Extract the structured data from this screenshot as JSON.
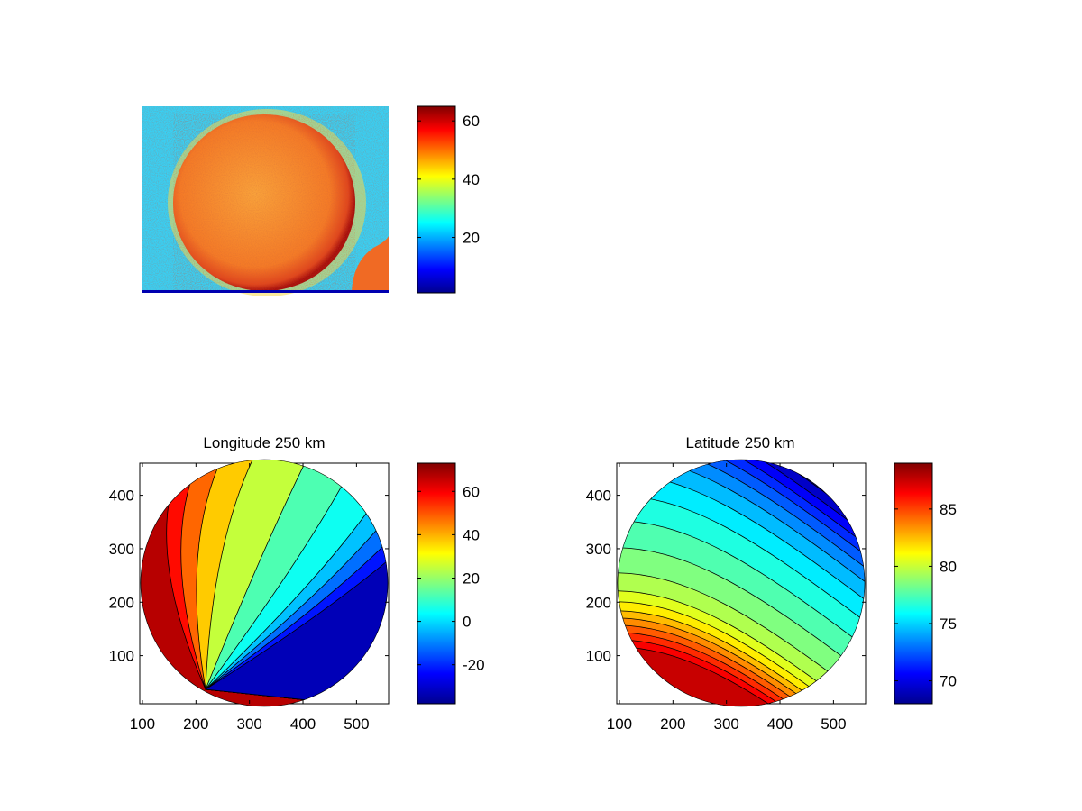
{
  "chart_data": [
    {
      "type": "heatmap",
      "title": "",
      "description_label": "",
      "colormap": "jet",
      "colorbar": {
        "min": 1,
        "max": 65,
        "ticks": [
          20,
          40,
          60
        ]
      },
      "axes_visible": false,
      "colors": {
        "background": "#38d0f4",
        "disk": "#f47a26",
        "limb": "#b8160f",
        "base_line": "#0000b0"
      }
    },
    {
      "type": "heatmap",
      "title": "Longitude 250 km",
      "xlabel": "",
      "ylabel": "",
      "xlim": [
        95,
        560
      ],
      "ylim": [
        10,
        460
      ],
      "xticks": [
        100,
        200,
        300,
        400,
        500
      ],
      "yticks": [
        100,
        200,
        300,
        400
      ],
      "contour_levels": [
        -30,
        -20,
        -10,
        0,
        10,
        20,
        30,
        40,
        50,
        60,
        70
      ],
      "colorbar": {
        "min": -38,
        "max": 73,
        "ticks": [
          -20,
          0,
          20,
          40,
          60
        ]
      },
      "colormap": "jet"
    },
    {
      "type": "heatmap",
      "title": "Latitude 250 km",
      "xlabel": "",
      "ylabel": "",
      "xlim": [
        95,
        560
      ],
      "ylim": [
        10,
        460
      ],
      "xticks": [
        100,
        200,
        300,
        400,
        500
      ],
      "yticks": [
        100,
        200,
        300,
        400
      ],
      "contour_levels": [
        69,
        70,
        71,
        72,
        73,
        74,
        75,
        76,
        77,
        78,
        79,
        80,
        81,
        82,
        83,
        84,
        85,
        86,
        87
      ],
      "colorbar": {
        "min": 68,
        "max": 89,
        "ticks": [
          70,
          75,
          80,
          85
        ]
      },
      "colormap": "jet"
    }
  ]
}
